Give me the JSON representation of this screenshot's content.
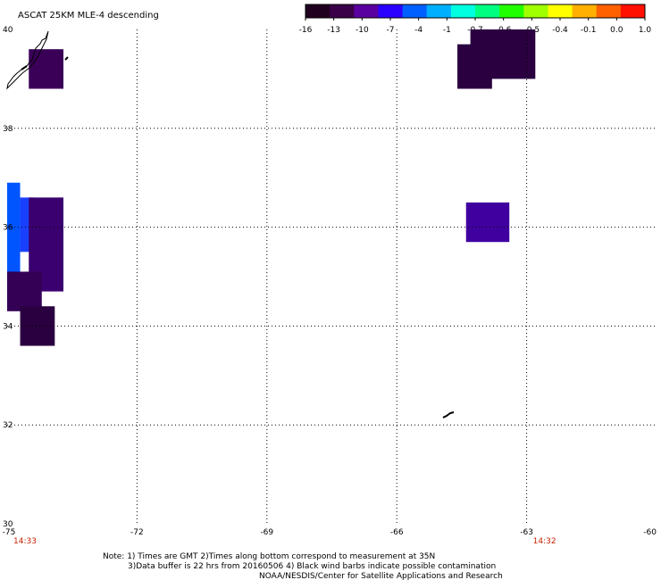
{
  "title": "ASCAT 25KM MLE-4 descending",
  "colorbar": {
    "colors": [
      "#200020",
      "#3a0048",
      "#5a00a0",
      "#2a00ff",
      "#0060ff",
      "#00b0ff",
      "#00ffe0",
      "#00ff80",
      "#20ff00",
      "#a0ff00",
      "#ffff00",
      "#ffb000",
      "#ff6000",
      "#ff1000"
    ],
    "labels": [
      "-16",
      "-13",
      "-10",
      "-7",
      "-4",
      "-1",
      "-0.7",
      "-0.6",
      "-0.5",
      "-0.4",
      "-0.1",
      "0.0",
      "1.0"
    ]
  },
  "map": {
    "lon_range": [
      -75,
      -60
    ],
    "lat_range": [
      30,
      40
    ],
    "lon_ticks": [
      {
        "value": -75,
        "label": "-75"
      },
      {
        "value": -72,
        "label": "-72"
      },
      {
        "value": -69,
        "label": "-69"
      },
      {
        "value": -66,
        "label": "-66"
      },
      {
        "value": -63,
        "label": "-63"
      },
      {
        "value": -60,
        "label": "-60"
      }
    ],
    "lat_ticks": [
      {
        "value": 40,
        "label": "40"
      },
      {
        "value": 38,
        "label": "38"
      },
      {
        "value": 36,
        "label": "36"
      },
      {
        "value": 34,
        "label": "34"
      },
      {
        "value": 32,
        "label": "32"
      },
      {
        "value": 30,
        "label": "30"
      }
    ],
    "times": [
      {
        "lon": -75,
        "label": "14:33"
      },
      {
        "lon": -63,
        "label": "14:32"
      }
    ],
    "cells": [
      {
        "lon": [
          -74.5,
          -73.7
        ],
        "lat": [
          38.8,
          39.6
        ],
        "color": "#3a0058"
      },
      {
        "lon": [
          -75.0,
          -74.7
        ],
        "lat": [
          35.0,
          36.9
        ],
        "color": "#0055ff"
      },
      {
        "lon": [
          -74.7,
          -74.4
        ],
        "lat": [
          35.5,
          36.6
        ],
        "color": "#1a40ff"
      },
      {
        "lon": [
          -74.5,
          -73.7
        ],
        "lat": [
          34.7,
          36.6
        ],
        "color": "#3a0070"
      },
      {
        "lon": [
          -75.0,
          -74.2
        ],
        "lat": [
          34.3,
          35.1
        ],
        "color": "#330055"
      },
      {
        "lon": [
          -74.7,
          -73.9
        ],
        "lat": [
          33.6,
          34.4
        ],
        "color": "#2a0040"
      },
      {
        "lon": [
          -64.6,
          -63.8
        ],
        "lat": [
          38.8,
          39.7
        ],
        "color": "#2a0040"
      },
      {
        "lon": [
          -64.3,
          -62.8
        ],
        "lat": [
          39.0,
          40.0
        ],
        "color": "#2a0040"
      },
      {
        "lon": [
          -64.4,
          -63.4
        ],
        "lat": [
          35.7,
          36.5
        ],
        "color": "#4000a0"
      }
    ]
  },
  "notes": {
    "line1": "Note: 1) Times are GMT 2)Times along bottom correspond to measurement at 35N",
    "line2": "3)Data buffer is 22 hrs from 20160506 4) Black wind barbs indicate possible contamination",
    "line3": "NOAA/NESDIS/Center for Satellite Applications and Research"
  }
}
